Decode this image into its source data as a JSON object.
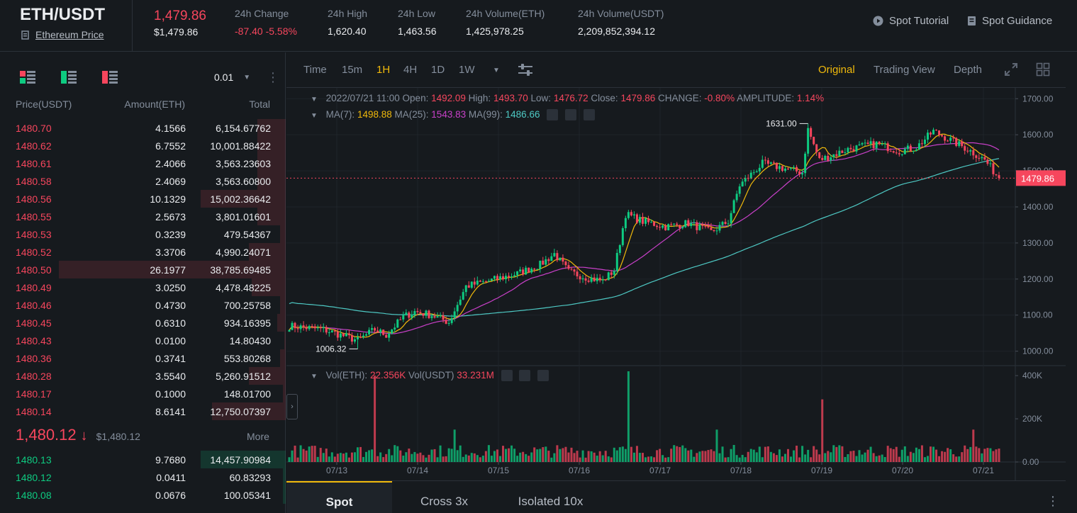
{
  "header": {
    "pair": "ETH/USDT",
    "coin_link": "Ethereum Price",
    "last_price": "1,479.86",
    "last_price_usd": "$1,479.86",
    "stats": [
      {
        "label": "24h Change",
        "value": "-87.40 -5.58%",
        "negative": true
      },
      {
        "label": "24h High",
        "value": "1,620.40"
      },
      {
        "label": "24h Low",
        "value": "1,463.56"
      },
      {
        "label": "24h Volume(ETH)",
        "value": "1,425,978.25"
      },
      {
        "label": "24h Volume(USDT)",
        "value": "2,209,852,394.12"
      }
    ],
    "tutorial": "Spot Tutorial",
    "guidance": "Spot Guidance"
  },
  "orderbook": {
    "precision": "0.01",
    "col_price": "Price(USDT)",
    "col_amount": "Amount(ETH)",
    "col_total": "Total",
    "asks": [
      {
        "price": "1480.70",
        "amount": "4.1566",
        "total": "6,154.67762",
        "depth": 0.1
      },
      {
        "price": "1480.62",
        "amount": "6.7552",
        "total": "10,001.88422",
        "depth": 0.1
      },
      {
        "price": "1480.61",
        "amount": "2.4066",
        "total": "3,563.23603",
        "depth": 0.1
      },
      {
        "price": "1480.58",
        "amount": "2.4069",
        "total": "3,563.60800",
        "depth": 0.1
      },
      {
        "price": "1480.56",
        "amount": "10.1329",
        "total": "15,002.36642",
        "depth": 0.3
      },
      {
        "price": "1480.55",
        "amount": "2.5673",
        "total": "3,801.01601",
        "depth": 0.1
      },
      {
        "price": "1480.53",
        "amount": "0.3239",
        "total": "479.54367",
        "depth": 0.02
      },
      {
        "price": "1480.52",
        "amount": "3.3706",
        "total": "4,990.24071",
        "depth": 0.13
      },
      {
        "price": "1480.50",
        "amount": "26.1977",
        "total": "38,785.69485",
        "depth": 0.8
      },
      {
        "price": "1480.49",
        "amount": "3.0250",
        "total": "4,478.48225",
        "depth": 0.12
      },
      {
        "price": "1480.46",
        "amount": "0.4730",
        "total": "700.25758",
        "depth": 0.02
      },
      {
        "price": "1480.45",
        "amount": "0.6310",
        "total": "934.16395",
        "depth": 0.03
      },
      {
        "price": "1480.43",
        "amount": "0.0100",
        "total": "14.80430",
        "depth": 0.005
      },
      {
        "price": "1480.36",
        "amount": "0.3741",
        "total": "553.80268",
        "depth": 0.02
      },
      {
        "price": "1480.28",
        "amount": "3.5540",
        "total": "5,260.91512",
        "depth": 0.13
      },
      {
        "price": "1480.17",
        "amount": "0.1000",
        "total": "148.01700",
        "depth": 0.01
      },
      {
        "price": "1480.14",
        "amount": "8.6141",
        "total": "12,750.07397",
        "depth": 0.26
      }
    ],
    "mid_price": "1,480.12",
    "mid_usd": "$1,480.12",
    "more": "More",
    "bids": [
      {
        "price": "1480.13",
        "amount": "9.7680",
        "total": "14,457.90984",
        "depth": 0.3
      },
      {
        "price": "1480.12",
        "amount": "0.0411",
        "total": "60.83293",
        "depth": 0.01
      },
      {
        "price": "1480.08",
        "amount": "0.0676",
        "total": "100.05341",
        "depth": 0.01
      }
    ]
  },
  "toolbar": {
    "intervals": [
      "Time",
      "15m",
      "1H",
      "4H",
      "1D",
      "1W"
    ],
    "active_interval": "1H",
    "views": [
      "Original",
      "Trading View",
      "Depth"
    ],
    "active_view": "Original"
  },
  "legend": {
    "date": "2022/07/21 11:00",
    "open_label": "Open:",
    "open": "1492.09",
    "high_label": "High:",
    "high": "1493.70",
    "low_label": "Low:",
    "low": "1476.72",
    "close_label": "Close:",
    "close": "1479.86",
    "change_label": "CHANGE:",
    "change": "-0.80%",
    "amp_label": "AMPLITUDE:",
    "amp": "1.14%",
    "ma7_label": "MA(7):",
    "ma7": "1498.88",
    "ma25_label": "MA(25):",
    "ma25": "1543.83",
    "ma99_label": "MA(99):",
    "ma99": "1486.66",
    "vol_eth_label": "Vol(ETH):",
    "vol_eth": "22.356K",
    "vol_usdt_label": "Vol(USDT)",
    "vol_usdt": "33.231M"
  },
  "chart_data": {
    "type": "candlestick",
    "price_ticks": [
      "1700.00",
      "1600.00",
      "1500.00",
      "1400.00",
      "1300.00",
      "1200.00",
      "1100.00",
      "1000.00"
    ],
    "price_ylim": [
      960,
      1730
    ],
    "volume_ticks": [
      "400K",
      "200K",
      "0.00"
    ],
    "volume_ylim": [
      0,
      420
    ],
    "date_ticks": [
      "07/13",
      "07/14",
      "07/15",
      "07/16",
      "07/17",
      "07/18",
      "07/19",
      "07/20",
      "07/21"
    ],
    "current_price": "1479.86",
    "high_marker": "1631.00",
    "low_marker": "1006.32",
    "colors": {
      "up": "#0ecb81",
      "down": "#f6465d",
      "ma7": "#f0b90b",
      "ma25": "#c940c9",
      "ma99": "#4ec9c4"
    }
  },
  "trade_tabs": [
    "Spot",
    "Cross 3x",
    "Isolated 10x"
  ],
  "active_trade_tab": "Spot"
}
